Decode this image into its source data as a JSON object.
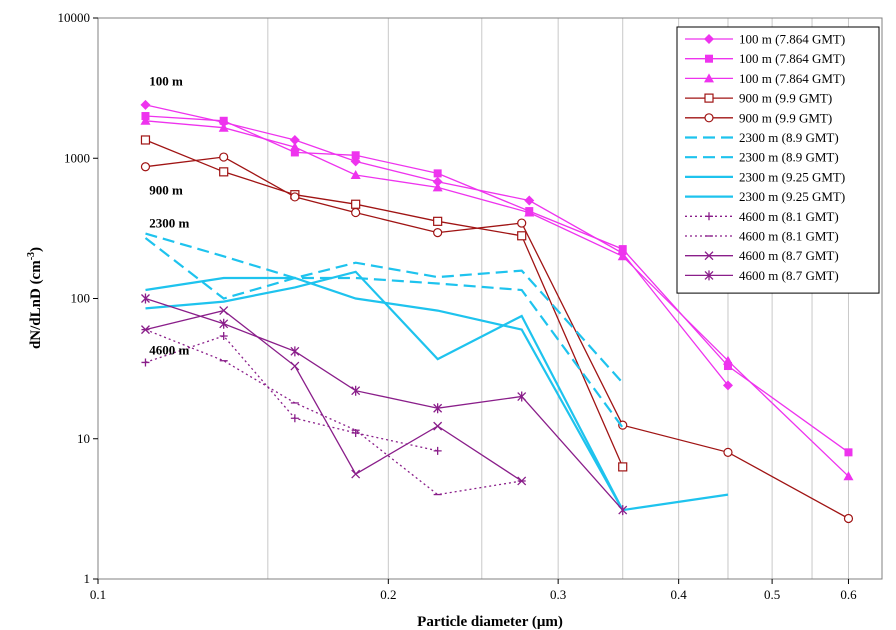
{
  "chart_data": {
    "type": "line",
    "xlabel": "Particle diameter (μm)",
    "ylabel_main": "dN/dLnD (cm",
    "ylabel_sup": "-3",
    "ylabel_close": ")",
    "xscale": "log",
    "yscale": "log",
    "xlim": [
      0.1,
      0.65
    ],
    "ylim": [
      1,
      10000
    ],
    "grid": "vertical",
    "legend_position": "top-right",
    "x_ticks": [
      {
        "value": 0.1,
        "label": "0.1"
      },
      {
        "value": 0.2,
        "label": "0.2"
      },
      {
        "value": 0.3,
        "label": "0.3"
      },
      {
        "value": 0.4,
        "label": "0.4"
      },
      {
        "value": 0.5,
        "label": "0.5"
      },
      {
        "value": 0.6,
        "label": "0.6"
      }
    ],
    "y_ticks": [
      {
        "value": 1,
        "label": "1"
      },
      {
        "value": 10,
        "label": "10"
      },
      {
        "value": 100,
        "label": "100"
      },
      {
        "value": 1000,
        "label": "1000"
      },
      {
        "value": 10000,
        "label": "10000"
      }
    ],
    "annotations": [
      {
        "text": "100 m",
        "x": 0.113,
        "y": 3300
      },
      {
        "text": "900 m",
        "x": 0.113,
        "y": 550
      },
      {
        "text": "2300 m",
        "x": 0.113,
        "y": 320
      },
      {
        "text": "4600 m",
        "x": 0.113,
        "y": 40
      }
    ],
    "colors": {
      "magenta": "#ee33ee",
      "brown": "#a01414",
      "cyan": "#1ec3ee",
      "purple": "#8a1e8a"
    },
    "series": [
      {
        "name": "100 m (7.864 GMT)",
        "color": "#ee33ee",
        "dash": "solid",
        "marker": "diamond",
        "x": [
          0.112,
          0.135,
          0.16,
          0.185,
          0.225,
          0.28,
          0.35,
          0.45
        ],
        "y": [
          2400,
          1800,
          1350,
          950,
          680,
          500,
          210,
          24
        ]
      },
      {
        "name": "100 m (7.864 GMT)",
        "color": "#ee33ee",
        "dash": "solid",
        "marker": "square",
        "x": [
          0.112,
          0.135,
          0.16,
          0.185,
          0.225,
          0.28,
          0.35,
          0.45,
          0.6
        ],
        "y": [
          2000,
          1850,
          1100,
          1050,
          780,
          420,
          225,
          33,
          8
        ]
      },
      {
        "name": "100 m (7.864 GMT)",
        "color": "#ee33ee",
        "dash": "solid",
        "marker": "triangle",
        "x": [
          0.112,
          0.135,
          0.16,
          0.185,
          0.225,
          0.28,
          0.35,
          0.45,
          0.6
        ],
        "y": [
          1850,
          1650,
          1200,
          760,
          620,
          410,
          200,
          36,
          5.4
        ]
      },
      {
        "name": "900 m (9.9 GMT)",
        "color": "#a01414",
        "dash": "solid",
        "marker": "open-square",
        "x": [
          0.112,
          0.135,
          0.16,
          0.185,
          0.225,
          0.275,
          0.35
        ],
        "y": [
          1350,
          800,
          550,
          470,
          355,
          280,
          6.3
        ]
      },
      {
        "name": "900 m (9.9 GMT)",
        "color": "#a01414",
        "dash": "solid",
        "marker": "open-circle",
        "x": [
          0.112,
          0.135,
          0.16,
          0.185,
          0.225,
          0.275,
          0.35,
          0.45,
          0.6
        ],
        "y": [
          870,
          1020,
          530,
          410,
          295,
          345,
          12.5,
          8,
          2.7
        ]
      },
      {
        "name": "2300 m (8.9 GMT)",
        "color": "#1ec3ee",
        "dash": "dashed",
        "marker": "none",
        "x": [
          0.112,
          0.135,
          0.16,
          0.185,
          0.225,
          0.275,
          0.35
        ],
        "y": [
          290,
          200,
          140,
          180,
          142,
          158,
          25
        ]
      },
      {
        "name": "2300 m (8.9 GMT)",
        "color": "#1ec3ee",
        "dash": "dashed",
        "marker": "none",
        "x": [
          0.112,
          0.135,
          0.16,
          0.185,
          0.225,
          0.275,
          0.35
        ],
        "y": [
          270,
          100,
          140,
          140,
          128,
          115,
          12
        ]
      },
      {
        "name": "2300 m (9.25 GMT)",
        "color": "#1ec3ee",
        "dash": "solid",
        "marker": "none",
        "x": [
          0.112,
          0.135,
          0.16,
          0.185,
          0.225,
          0.275,
          0.35,
          0.45
        ],
        "y": [
          115,
          140,
          140,
          100,
          82,
          60,
          3.1,
          4
        ]
      },
      {
        "name": "2300 m (9.25 GMT)",
        "color": "#1ec3ee",
        "dash": "solid",
        "marker": "none",
        "x": [
          0.112,
          0.135,
          0.16,
          0.185,
          0.225,
          0.275,
          0.35
        ],
        "y": [
          85,
          95,
          120,
          155,
          37,
          75,
          3.1
        ]
      },
      {
        "name": "4600 m (8.1 GMT)",
        "color": "#8a1e8a",
        "dash": "dotted",
        "marker": "plus",
        "x": [
          0.112,
          0.135,
          0.16,
          0.185,
          0.225
        ],
        "y": [
          35,
          54,
          14,
          11,
          8.2
        ]
      },
      {
        "name": "4600 m (8.1 GMT)",
        "color": "#8a1e8a",
        "dash": "dotted",
        "marker": "dash",
        "x": [
          0.112,
          0.135,
          0.16,
          0.185,
          0.225,
          0.275
        ],
        "y": [
          60,
          36,
          18,
          11.5,
          4,
          5
        ]
      },
      {
        "name": "4600 m (8.7 GMT)",
        "color": "#8a1e8a",
        "dash": "solid",
        "marker": "x",
        "x": [
          0.112,
          0.135,
          0.16,
          0.185,
          0.225,
          0.275
        ],
        "y": [
          60,
          82,
          33,
          5.6,
          12.3,
          5
        ]
      },
      {
        "name": "4600 m (8.7 GMT)",
        "color": "#8a1e8a",
        "dash": "solid",
        "marker": "asterisk",
        "x": [
          0.112,
          0.135,
          0.16,
          0.185,
          0.225,
          0.275,
          0.35
        ],
        "y": [
          100,
          66,
          42,
          22,
          16.5,
          20,
          3.1
        ]
      }
    ]
  }
}
